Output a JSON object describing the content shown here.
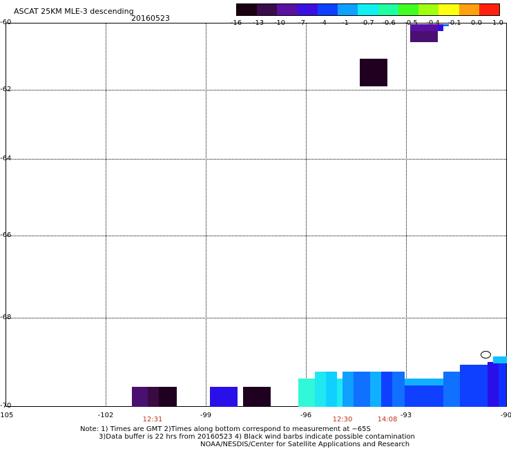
{
  "header": {
    "title": "ASCAT 25KM MLE-3 descending",
    "date": "20160523"
  },
  "colorbar": {
    "labels": [
      "-16",
      "-13",
      "-10",
      "-7",
      "-4",
      "-1",
      "-0.7",
      "-0.6",
      "-0.5",
      "-0.4",
      "-0.1",
      "0.0",
      "1.0"
    ],
    "colors": [
      "#1a0010",
      "#3a0c4a",
      "#5a10a0",
      "#3a10e0",
      "#1040ff",
      "#10a0ff",
      "#10f0f0",
      "#20ffa0",
      "#40ff20",
      "#a0ff10",
      "#ffff10",
      "#ffa010",
      "#ff2010"
    ]
  },
  "axes": {
    "x_labels": [
      "-105",
      "-102",
      "-99",
      "-96",
      "-93",
      "-90"
    ],
    "y_labels": [
      "-60",
      "-62",
      "-64",
      "-66",
      "-68",
      "-70"
    ]
  },
  "times": [
    "12:31",
    "12:30",
    "14:08"
  ],
  "notes": {
    "line1": "Note: 1) Times are GMT 2)Times along bottom correspond to measurement at −65S",
    "line2": "3)Data buffer is 22 hrs from 20160523 4) Black wind barbs indicate possible contamination",
    "line3": "NOAA/NESDIS/Center for Satellite Applications and Research"
  },
  "palette": {
    "black_purple": "#200020",
    "dark_purple": "#3a0a40",
    "purple": "#4a1070",
    "blue_violet": "#2a10e8",
    "blue": "#1030ff",
    "mid_blue": "#1070ff",
    "light_blue": "#10b0ff",
    "cyan": "#20e8f0",
    "aqua": "#30f8d8"
  }
}
